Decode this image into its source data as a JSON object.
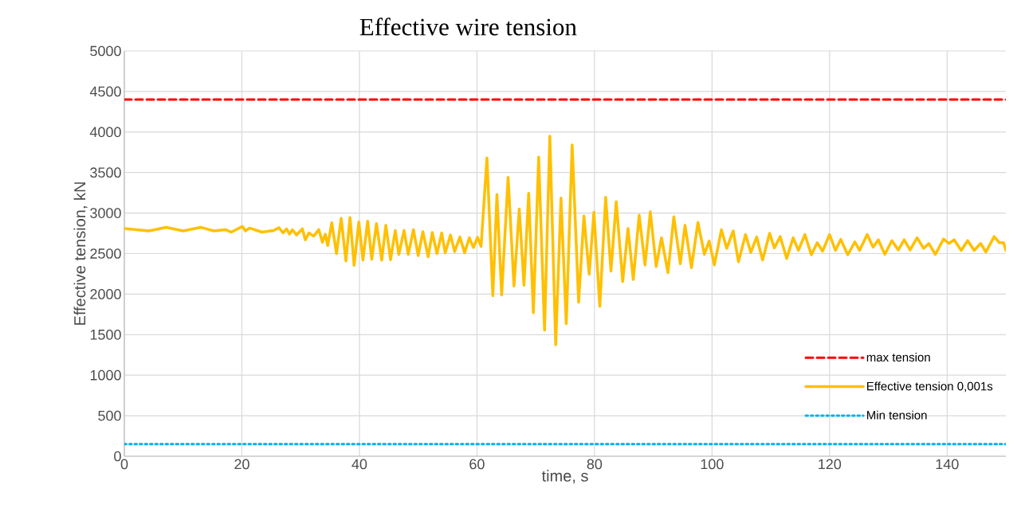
{
  "chart_data": {
    "type": "line",
    "title": "Effective wire tension",
    "xlabel": "time, s",
    "ylabel": "Effective tension, kN",
    "xlim": [
      0,
      150
    ],
    "ylim": [
      0,
      5000
    ],
    "xticks": [
      0,
      20,
      40,
      60,
      80,
      100,
      120,
      140
    ],
    "yticks": [
      0,
      500,
      1000,
      1500,
      2000,
      2500,
      3000,
      3500,
      4000,
      4500,
      5000
    ],
    "grid": true,
    "legend": "bottom right",
    "series": [
      {
        "name": "max tension",
        "color": "#ff0000",
        "line_style": "dashed",
        "x": [
          0,
          150
        ],
        "values": [
          4400,
          4400
        ]
      },
      {
        "name": "Effective tension 0,001s",
        "color": "#ffc000",
        "line_style": "solid",
        "x": [
          0,
          4.2,
          7.1,
          10.0,
          13.0,
          15.2,
          17.2,
          18.2,
          20.1,
          20.6,
          21.3,
          23.4,
          25.4,
          26.3,
          27.0,
          27.6,
          28.1,
          28.6,
          29.3,
          30.3,
          30.8,
          31.4,
          32.2,
          33.1,
          33.7,
          34.2,
          34.6,
          35.3,
          36.1,
          36.9,
          37.7,
          38.4,
          39.1,
          39.9,
          40.6,
          41.4,
          42.1,
          42.9,
          43.8,
          44.5,
          45.3,
          46.1,
          46.7,
          47.6,
          48.3,
          49.2,
          50.0,
          50.8,
          51.7,
          52.4,
          53.2,
          54.0,
          54.6,
          55.5,
          56.2,
          57.1,
          57.9,
          58.7,
          59.4,
          60.1,
          60.7,
          61.7,
          62.7,
          63.4,
          64.2,
          65.3,
          66.3,
          67.2,
          68.0,
          68.8,
          69.6,
          70.5,
          71.5,
          72.4,
          73.4,
          74.3,
          75.2,
          76.2,
          77.3,
          78.2,
          79.1,
          79.9,
          80.9,
          81.9,
          82.8,
          83.7,
          84.8,
          85.7,
          86.6,
          87.6,
          88.6,
          89.5,
          90.5,
          91.4,
          92.5,
          93.5,
          94.6,
          95.4,
          96.5,
          97.6,
          98.7,
          99.5,
          100.4,
          101.6,
          102.5,
          103.6,
          104.5,
          105.7,
          106.6,
          107.6,
          108.6,
          109.8,
          110.6,
          111.6,
          112.7,
          113.8,
          114.7,
          115.8,
          116.9,
          117.9,
          118.8,
          120.0,
          121.0,
          121.9,
          123.1,
          124.3,
          125.1,
          126.4,
          127.4,
          128.3,
          129.4,
          130.6,
          131.7,
          132.7,
          133.7,
          134.9,
          136.0,
          136.9,
          138.0,
          139.4,
          140.3,
          141.2,
          142.4,
          143.5,
          144.6,
          145.7,
          146.6,
          148.0,
          148.9,
          149.6,
          150
        ],
        "values": [
          2810,
          2780,
          2825,
          2780,
          2825,
          2780,
          2795,
          2765,
          2835,
          2780,
          2815,
          2765,
          2785,
          2820,
          2755,
          2805,
          2740,
          2795,
          2730,
          2805,
          2670,
          2755,
          2715,
          2795,
          2640,
          2740,
          2600,
          2880,
          2500,
          2935,
          2410,
          2945,
          2355,
          2890,
          2420,
          2900,
          2430,
          2870,
          2420,
          2850,
          2425,
          2785,
          2490,
          2785,
          2490,
          2795,
          2475,
          2770,
          2460,
          2760,
          2500,
          2755,
          2510,
          2730,
          2525,
          2705,
          2510,
          2695,
          2575,
          2700,
          2590,
          3680,
          1980,
          3230,
          1990,
          3440,
          2100,
          3050,
          2110,
          3245,
          1770,
          3690,
          1555,
          3950,
          1375,
          3185,
          1635,
          3840,
          1900,
          2965,
          2245,
          3010,
          1850,
          3195,
          2285,
          3140,
          2155,
          2810,
          2180,
          2975,
          2360,
          3015,
          2340,
          2695,
          2265,
          2955,
          2375,
          2850,
          2325,
          2885,
          2490,
          2655,
          2360,
          2795,
          2565,
          2780,
          2400,
          2735,
          2515,
          2705,
          2420,
          2750,
          2570,
          2710,
          2440,
          2695,
          2540,
          2735,
          2485,
          2635,
          2530,
          2735,
          2540,
          2675,
          2485,
          2645,
          2540,
          2735,
          2580,
          2670,
          2490,
          2660,
          2545,
          2670,
          2545,
          2695,
          2565,
          2625,
          2490,
          2680,
          2625,
          2670,
          2540,
          2660,
          2540,
          2625,
          2520,
          2710,
          2635,
          2635,
          2540
        ]
      },
      {
        "name": "Min tension",
        "color": "#00b0f0",
        "line_style": "dotted",
        "x": [
          0,
          150
        ],
        "values": [
          150,
          150
        ]
      }
    ]
  }
}
